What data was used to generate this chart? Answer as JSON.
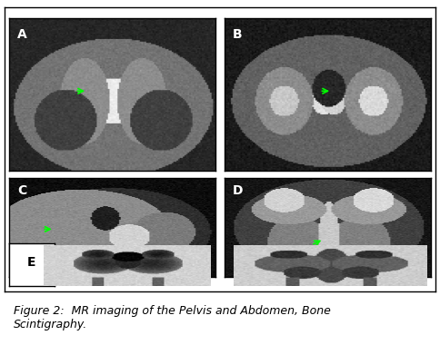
{
  "title": "",
  "caption": "Figure 2:  MR imaging of the Pelvis and Abdomen, Bone\nScintigraphy.",
  "caption_fontsize": 9,
  "panel_labels": [
    "A",
    "B",
    "C",
    "D",
    "E"
  ],
  "label_color": "white",
  "label_E_color": "black",
  "border_color": "black",
  "border_lw": 1.0,
  "bg_color": "white",
  "outer_border_color": "black",
  "outer_border_lw": 1.0
}
